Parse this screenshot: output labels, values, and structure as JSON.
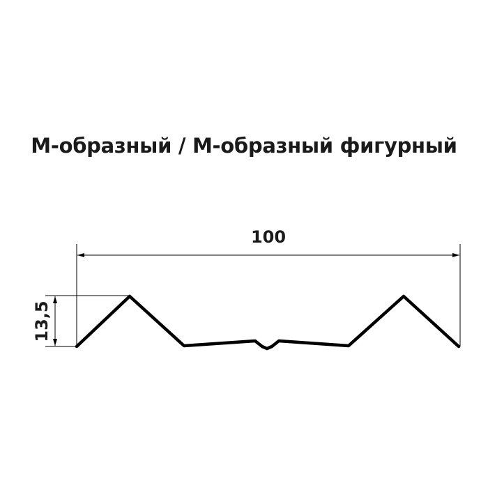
{
  "title": "М-образный / М-образный фигурный",
  "dimensions": {
    "width_label": "100",
    "height_label": "13,5"
  },
  "colors": {
    "line": "#000000",
    "text": "#1a1a1a"
  }
}
